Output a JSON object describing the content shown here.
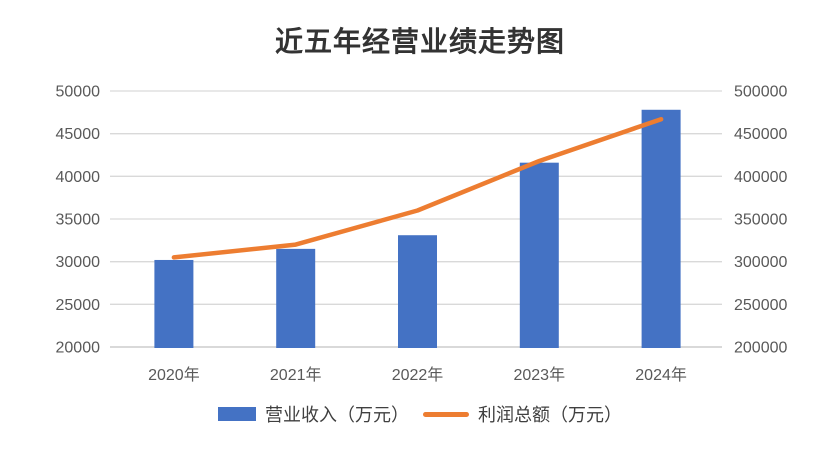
{
  "chart_data": {
    "type": "bar+line combo",
    "title": "近五年经营业绩走势图",
    "categories": [
      "2020年",
      "2021年",
      "2022年",
      "2023年",
      "2024年"
    ],
    "series": [
      {
        "name": "营业收入（万元）",
        "type": "bar",
        "axis": "left",
        "color": "#4472C4",
        "values": [
          30200,
          31500,
          33100,
          41600,
          47800
        ]
      },
      {
        "name": "利润总额（万元）",
        "type": "line",
        "axis": "right",
        "color": "#ED7D31",
        "values": [
          305000,
          320000,
          360000,
          418000,
          467000
        ]
      }
    ],
    "left_axis": {
      "min": 20000,
      "max": 50000,
      "step": 5000,
      "ticks": [
        "20000",
        "25000",
        "30000",
        "35000",
        "40000",
        "45000",
        "50000"
      ]
    },
    "right_axis": {
      "min": 200000,
      "max": 500000,
      "step": 50000,
      "ticks": [
        "200000",
        "250000",
        "300000",
        "350000",
        "400000",
        "450000",
        "500000"
      ]
    },
    "grid": true,
    "legend_position": "bottom",
    "colors": {
      "grid": "#D9D9D9",
      "axis_line": "#D9D9D9",
      "axis_text": "#595959",
      "title_text": "#333333",
      "legend_text": "#404040",
      "background": "#FFFFFF"
    }
  }
}
